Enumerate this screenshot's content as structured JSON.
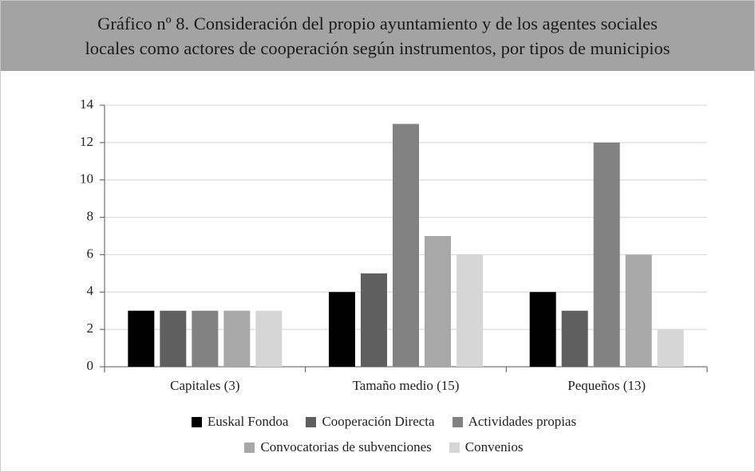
{
  "chart_data": {
    "type": "bar",
    "title": "Gráfico nº 8. Consideración del propio ayuntamiento y de los agentes sociales\nlocales como actores de cooperación según instrumentos, por tipos de municipios",
    "categories": [
      "Capitales (3)",
      "Tamaño medio (15)",
      "Pequeños (13)"
    ],
    "series": [
      {
        "name": "Euskal Fondoa",
        "color": "#000000",
        "values": [
          3,
          4,
          4
        ]
      },
      {
        "name": "Cooperación Directa",
        "color": "#5f5f5f",
        "values": [
          3,
          5,
          3
        ]
      },
      {
        "name": "Actividades propias",
        "color": "#828282",
        "values": [
          3,
          13,
          12
        ]
      },
      {
        "name": "Convocatorias de subvenciones",
        "color": "#a8a8a8",
        "values": [
          3,
          7,
          6
        ]
      },
      {
        "name": "Convenios",
        "color": "#d6d6d6",
        "values": [
          3,
          6,
          2
        ]
      }
    ],
    "ylim": [
      0,
      14
    ],
    "yticks": [
      0,
      2,
      4,
      6,
      8,
      10,
      12,
      14
    ],
    "grid": true,
    "legend": "bottom"
  }
}
